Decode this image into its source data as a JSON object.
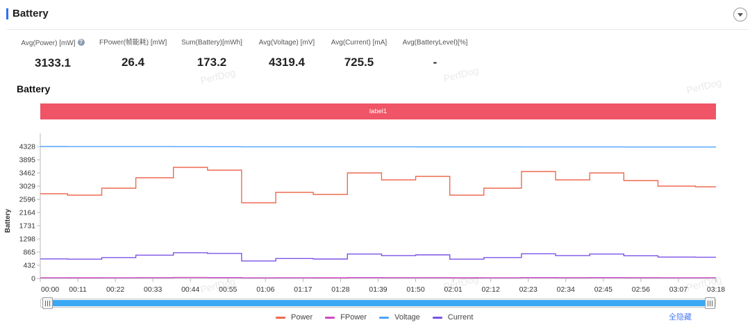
{
  "header": {
    "title": "Battery",
    "accent_color": "#2f6ff5",
    "collapse_icon": "chevron-down-icon"
  },
  "stats": [
    {
      "label": "Avg(Power) [mW]",
      "value": "3133.1",
      "help_icon": "question-circle-icon"
    },
    {
      "label": "FPower(帧能耗) [mW]",
      "value": "26.4"
    },
    {
      "label": "Sum(Battery)[mWh]",
      "value": "173.2"
    },
    {
      "label": "Avg(Voltage) [mV]",
      "value": "4319.4"
    },
    {
      "label": "Avg(Current) [mA]",
      "value": "725.5"
    },
    {
      "label": "Avg(BatteryLevel)[%]",
      "value": "-"
    }
  ],
  "label_bar": {
    "text": "label1",
    "color": "#ef5566"
  },
  "watermark": "PerfDog",
  "chart_data": {
    "type": "line",
    "line_style": "step",
    "title": "Battery",
    "xlabel": "",
    "ylabel": "Battery",
    "xlim": [
      "00:00",
      "03:18"
    ],
    "ylim": [
      0,
      4761
    ],
    "grid": false,
    "legend": "bottom",
    "yticks": [
      0,
      432,
      865,
      1298,
      1731,
      2164,
      2596,
      3029,
      3462,
      3895,
      4328
    ],
    "xticks": [
      "00:00",
      "00:11",
      "00:22",
      "00:33",
      "00:44",
      "00:55",
      "01:06",
      "01:17",
      "01:28",
      "01:39",
      "01:50",
      "02:01",
      "02:12",
      "02:23",
      "02:34",
      "02:45",
      "02:56",
      "03:07",
      "03:18"
    ],
    "x": [
      "00:00",
      "00:08",
      "00:18",
      "00:28",
      "00:39",
      "00:49",
      "00:59",
      "01:09",
      "01:20",
      "01:30",
      "01:40",
      "01:50",
      "02:00",
      "02:10",
      "02:21",
      "02:31",
      "02:41",
      "02:51",
      "03:01",
      "03:12",
      "03:18"
    ],
    "series": [
      {
        "name": "Power",
        "color": "#ee6a50",
        "values": [
          2779,
          2733,
          2961,
          3303,
          3645,
          3554,
          2483,
          2825,
          2756,
          3462,
          3235,
          3349,
          2733,
          2961,
          3508,
          3235,
          3462,
          3212,
          3030,
          3007,
          3007
        ]
      },
      {
        "name": "FPower",
        "color": "#d048c8",
        "values": [
          24,
          23,
          25,
          28,
          31,
          30,
          20,
          24,
          23,
          29,
          27,
          28,
          23,
          25,
          29,
          27,
          29,
          27,
          25,
          25,
          25
        ]
      },
      {
        "name": "Voltage",
        "color": "#4da3ff",
        "values": [
          4328,
          4327,
          4326,
          4325,
          4323,
          4321,
          4320,
          4320,
          4319,
          4318,
          4318,
          4317,
          4317,
          4316,
          4315,
          4315,
          4314,
          4313,
          4313,
          4312,
          4312
        ]
      },
      {
        "name": "Current",
        "color": "#7a52e6",
        "values": [
          643,
          633,
          686,
          765,
          844,
          823,
          575,
          654,
          638,
          801,
          749,
          775,
          633,
          686,
          812,
          749,
          802,
          744,
          702,
          697,
          697
        ]
      }
    ]
  },
  "slider": {
    "start_percent": 0,
    "end_percent": 100,
    "fill_color": "#3aa8f2"
  },
  "legend": {
    "hide_all_label": "全隐藏",
    "hide_all_color": "#4d7df5"
  }
}
